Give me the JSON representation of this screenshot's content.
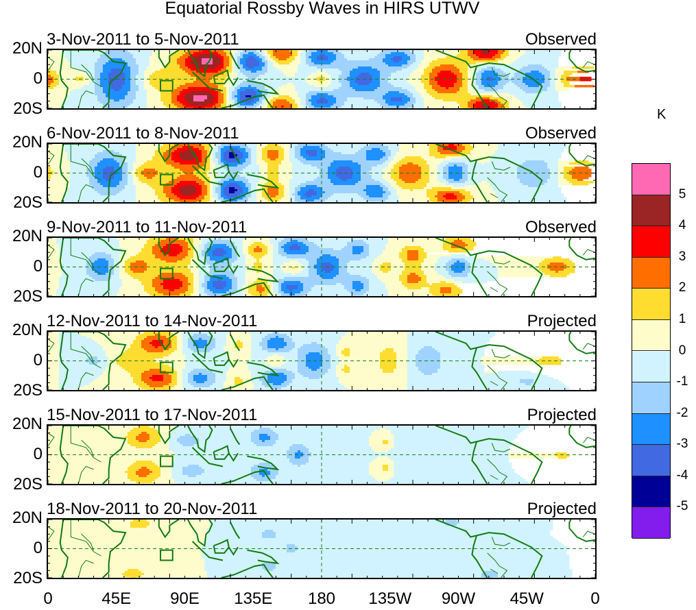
{
  "chart_data": {
    "type": "heatmap",
    "title": "Equatorial Rossby Waves in HIRS UTWV",
    "units": "K",
    "xlabel": "",
    "ylabel": "",
    "x_ticks": [
      "0",
      "45E",
      "90E",
      "135E",
      "180",
      "135W",
      "90W",
      "45W",
      "0"
    ],
    "x_range_deg_east": [
      0,
      360
    ],
    "y_ticks": [
      "20N",
      "0",
      "20S"
    ],
    "y_range_deg": [
      -20,
      20
    ],
    "colorbar": {
      "levels": [
        -5,
        -4,
        -3,
        -2,
        -1,
        0,
        1,
        2,
        3,
        4,
        5
      ],
      "labels": [
        "5",
        "4",
        "3",
        "2",
        "1",
        "0",
        "-1",
        "-2",
        "-3",
        "-4",
        "-5"
      ],
      "colors": [
        "#ff69b4",
        "#9b2424",
        "#ff0000",
        "#ff6f00",
        "#ffdd30",
        "#fffccc",
        "#d1f3ff",
        "#a0d2ff",
        "#1e90ff",
        "#4169e1",
        "#000096",
        "#821ded"
      ]
    },
    "panels": [
      {
        "period": "3-Nov-2011 to 5-Nov-2011",
        "status": "Observed",
        "features": [
          {
            "lon": 105,
            "lat": 12,
            "amp": 5.3,
            "sx": 14,
            "sy": 7
          },
          {
            "lon": 100,
            "lat": -13,
            "amp": 5.3,
            "sx": 14,
            "sy": 7
          },
          {
            "lon": 72,
            "lat": 0,
            "amp": 1.6,
            "sx": 8,
            "sy": 5
          },
          {
            "lon": 45,
            "lat": 0,
            "amp": -3.5,
            "sx": 10,
            "sy": 14
          },
          {
            "lon": 133,
            "lat": 12,
            "amp": -4.6,
            "sx": 9,
            "sy": 6
          },
          {
            "lon": 131,
            "lat": -12,
            "amp": -4.6,
            "sx": 9,
            "sy": 6
          },
          {
            "lon": 153,
            "lat": 17,
            "amp": 3.2,
            "sx": 9,
            "sy": 5
          },
          {
            "lon": 153,
            "lat": -18,
            "amp": 3.2,
            "sx": 9,
            "sy": 5
          },
          {
            "lon": 180,
            "lat": 15,
            "amp": -3.3,
            "sx": 9,
            "sy": 5
          },
          {
            "lon": 180,
            "lat": -15,
            "amp": -3.3,
            "sx": 9,
            "sy": 5
          },
          {
            "lon": 180,
            "lat": 0,
            "amp": 1.4,
            "sx": 4,
            "sy": 4
          },
          {
            "lon": 208,
            "lat": 0,
            "amp": -3.5,
            "sx": 10,
            "sy": 8
          },
          {
            "lon": 230,
            "lat": 14,
            "amp": -3.2,
            "sx": 8,
            "sy": 5
          },
          {
            "lon": 230,
            "lat": -14,
            "amp": -3.2,
            "sx": 8,
            "sy": 5
          },
          {
            "lon": 262,
            "lat": 0,
            "amp": 3.8,
            "sx": 10,
            "sy": 9
          },
          {
            "lon": 288,
            "lat": 18,
            "amp": 4.3,
            "sx": 9,
            "sy": 5
          },
          {
            "lon": 288,
            "lat": -18,
            "amp": 4.3,
            "sx": 9,
            "sy": 5
          },
          {
            "lon": 290,
            "lat": 0,
            "amp": -3.2,
            "sx": 7,
            "sy": 7
          },
          {
            "lon": 320,
            "lat": 0,
            "amp": -2.8,
            "sx": 9,
            "sy": 7
          },
          {
            "lon": 348,
            "lat": 0,
            "amp": 2.7,
            "sx": 9,
            "sy": 6
          },
          {
            "lon": 0,
            "lat": 0,
            "amp": 1.6,
            "sx": 6,
            "sy": 5
          },
          {
            "lon": 22,
            "lat": 0,
            "amp": 1.4,
            "sx": 6,
            "sy": 3
          }
        ]
      },
      {
        "period": "6-Nov-2011 to 8-Nov-2011",
        "status": "Observed",
        "features": [
          {
            "lon": 93,
            "lat": 12,
            "amp": 4.5,
            "sx": 13,
            "sy": 7
          },
          {
            "lon": 93,
            "lat": -12,
            "amp": 4.5,
            "sx": 13,
            "sy": 7
          },
          {
            "lon": 65,
            "lat": 0,
            "amp": 2.3,
            "sx": 7,
            "sy": 5
          },
          {
            "lon": 40,
            "lat": 0,
            "amp": -3.4,
            "sx": 9,
            "sy": 10
          },
          {
            "lon": 120,
            "lat": 12,
            "amp": -4.7,
            "sx": 9,
            "sy": 6
          },
          {
            "lon": 120,
            "lat": -12,
            "amp": -4.7,
            "sx": 9,
            "sy": 6
          },
          {
            "lon": 148,
            "lat": 13,
            "amp": 2.6,
            "sx": 7,
            "sy": 5
          },
          {
            "lon": 148,
            "lat": -13,
            "amp": 2.6,
            "sx": 7,
            "sy": 5
          },
          {
            "lon": 148,
            "lat": 0,
            "amp": 1.3,
            "sx": 4,
            "sy": 4
          },
          {
            "lon": 173,
            "lat": 14,
            "amp": -3.3,
            "sx": 8,
            "sy": 5
          },
          {
            "lon": 172,
            "lat": -14,
            "amp": -3.3,
            "sx": 8,
            "sy": 5
          },
          {
            "lon": 195,
            "lat": 0,
            "amp": -3.6,
            "sx": 10,
            "sy": 8
          },
          {
            "lon": 216,
            "lat": 13,
            "amp": -2.8,
            "sx": 7,
            "sy": 5
          },
          {
            "lon": 216,
            "lat": -13,
            "amp": -2.8,
            "sx": 7,
            "sy": 5
          },
          {
            "lon": 238,
            "lat": 0,
            "amp": 2.9,
            "sx": 9,
            "sy": 8
          },
          {
            "lon": 265,
            "lat": 17,
            "amp": 3.5,
            "sx": 9,
            "sy": 5
          },
          {
            "lon": 265,
            "lat": -16,
            "amp": 3.5,
            "sx": 9,
            "sy": 5
          },
          {
            "lon": 268,
            "lat": 0,
            "amp": -3.0,
            "sx": 6,
            "sy": 7
          },
          {
            "lon": 320,
            "lat": 0,
            "amp": -2.0,
            "sx": 10,
            "sy": 8
          },
          {
            "lon": 350,
            "lat": 0,
            "amp": 2.8,
            "sx": 9,
            "sy": 6
          }
        ]
      },
      {
        "period": "9-Nov-2011 to 11-Nov-2011",
        "status": "Observed",
        "features": [
          {
            "lon": 82,
            "lat": 12,
            "amp": 3.6,
            "sx": 12,
            "sy": 7
          },
          {
            "lon": 82,
            "lat": -12,
            "amp": 3.6,
            "sx": 12,
            "sy": 7
          },
          {
            "lon": 58,
            "lat": 0,
            "amp": 2.4,
            "sx": 7,
            "sy": 5
          },
          {
            "lon": 35,
            "lat": 0,
            "amp": -2.8,
            "sx": 7,
            "sy": 7
          },
          {
            "lon": 112,
            "lat": 10,
            "amp": -3.6,
            "sx": 9,
            "sy": 6
          },
          {
            "lon": 112,
            "lat": -12,
            "amp": -3.6,
            "sx": 9,
            "sy": 6
          },
          {
            "lon": 138,
            "lat": 12,
            "amp": 2.3,
            "sx": 6,
            "sy": 4
          },
          {
            "lon": 140,
            "lat": -15,
            "amp": 2.4,
            "sx": 7,
            "sy": 5
          },
          {
            "lon": 138,
            "lat": 0,
            "amp": 1.3,
            "sx": 4,
            "sy": 4
          },
          {
            "lon": 162,
            "lat": 13,
            "amp": -3.3,
            "sx": 8,
            "sy": 5
          },
          {
            "lon": 160,
            "lat": -14,
            "amp": -3.3,
            "sx": 8,
            "sy": 5
          },
          {
            "lon": 162,
            "lat": 0,
            "amp": 1.3,
            "sx": 4,
            "sy": 4
          },
          {
            "lon": 184,
            "lat": 0,
            "amp": -3.3,
            "sx": 8,
            "sy": 8
          },
          {
            "lon": 204,
            "lat": 12,
            "amp": -2.4,
            "sx": 6,
            "sy": 5
          },
          {
            "lon": 204,
            "lat": -13,
            "amp": -2.4,
            "sx": 6,
            "sy": 5
          },
          {
            "lon": 222,
            "lat": 0,
            "amp": 1.5,
            "sx": 4,
            "sy": 4
          },
          {
            "lon": 240,
            "lat": 8,
            "amp": 2.6,
            "sx": 6,
            "sy": 5
          },
          {
            "lon": 240,
            "lat": -8,
            "amp": 2.6,
            "sx": 6,
            "sy": 5
          },
          {
            "lon": 270,
            "lat": 15,
            "amp": 2.6,
            "sx": 8,
            "sy": 5
          },
          {
            "lon": 262,
            "lat": -16,
            "amp": 2.3,
            "sx": 8,
            "sy": 5
          },
          {
            "lon": 270,
            "lat": 0,
            "amp": -2.7,
            "sx": 6,
            "sy": 6
          },
          {
            "lon": 335,
            "lat": 0,
            "amp": 2.5,
            "sx": 9,
            "sy": 5
          }
        ]
      },
      {
        "period": "12-Nov-2011 to 14-Nov-2011",
        "status": "Projected",
        "features": [
          {
            "lon": 72,
            "lat": 12,
            "amp": 3.3,
            "sx": 10,
            "sy": 6
          },
          {
            "lon": 72,
            "lat": -12,
            "amp": 3.3,
            "sx": 10,
            "sy": 6
          },
          {
            "lon": 52,
            "lat": 0,
            "amp": 1.4,
            "sx": 8,
            "sy": 6
          },
          {
            "lon": 30,
            "lat": 0,
            "amp": -1.3,
            "sx": 6,
            "sy": 4
          },
          {
            "lon": 100,
            "lat": 12,
            "amp": -2.5,
            "sx": 8,
            "sy": 5
          },
          {
            "lon": 100,
            "lat": -12,
            "amp": -2.5,
            "sx": 8,
            "sy": 5
          },
          {
            "lon": 125,
            "lat": 11,
            "amp": 1.3,
            "sx": 5,
            "sy": 4
          },
          {
            "lon": 125,
            "lat": -14,
            "amp": 1.3,
            "sx": 5,
            "sy": 4
          },
          {
            "lon": 150,
            "lat": 12,
            "amp": -3.0,
            "sx": 7,
            "sy": 5
          },
          {
            "lon": 150,
            "lat": -12,
            "amp": -3.0,
            "sx": 7,
            "sy": 5
          },
          {
            "lon": 150,
            "lat": 0,
            "amp": 1.3,
            "sx": 4,
            "sy": 4
          },
          {
            "lon": 175,
            "lat": 0,
            "amp": -2.6,
            "sx": 8,
            "sy": 9
          },
          {
            "lon": 196,
            "lat": 6,
            "amp": 1.3,
            "sx": 4,
            "sy": 4
          },
          {
            "lon": 196,
            "lat": -6,
            "amp": 1.3,
            "sx": 4,
            "sy": 4
          },
          {
            "lon": 224,
            "lat": 0,
            "amp": 1.5,
            "sx": 7,
            "sy": 10
          },
          {
            "lon": 250,
            "lat": 0,
            "amp": -1.8,
            "sx": 8,
            "sy": 9
          },
          {
            "lon": 330,
            "lat": 0,
            "amp": 1.4,
            "sx": 10,
            "sy": 4
          },
          {
            "lon": 315,
            "lat": -14,
            "amp": -1.3,
            "sx": 6,
            "sy": 3
          }
        ]
      },
      {
        "period": "15-Nov-2011 to 17-Nov-2011",
        "status": "Projected",
        "features": [
          {
            "lon": 63,
            "lat": 12,
            "amp": 2.3,
            "sx": 9,
            "sy": 6
          },
          {
            "lon": 63,
            "lat": -12,
            "amp": 2.3,
            "sx": 9,
            "sy": 6
          },
          {
            "lon": 92,
            "lat": 10,
            "amp": -1.6,
            "sx": 8,
            "sy": 4
          },
          {
            "lon": 95,
            "lat": -11,
            "amp": -1.6,
            "sx": 8,
            "sy": 4
          },
          {
            "lon": 142,
            "lat": 12,
            "amp": -2.3,
            "sx": 7,
            "sy": 5
          },
          {
            "lon": 142,
            "lat": -12,
            "amp": -2.3,
            "sx": 7,
            "sy": 5
          },
          {
            "lon": 165,
            "lat": 0,
            "amp": -2.2,
            "sx": 6,
            "sy": 6
          },
          {
            "lon": 222,
            "lat": 9,
            "amp": 1.3,
            "sx": 3,
            "sy": 3
          },
          {
            "lon": 222,
            "lat": -9,
            "amp": 1.3,
            "sx": 3,
            "sy": 3
          },
          {
            "lon": 245,
            "lat": 0,
            "amp": -0.8,
            "sx": 10,
            "sy": 12
          },
          {
            "lon": 338,
            "lat": 0,
            "amp": 1.3,
            "sx": 6,
            "sy": 3
          }
        ]
      },
      {
        "period": "18-Nov-2011 to 20-Nov-2011",
        "status": "Projected",
        "features": [
          {
            "lon": 60,
            "lat": 17,
            "amp": 1.4,
            "sx": 8,
            "sy": 4
          },
          {
            "lon": 56,
            "lat": -17,
            "amp": 1.4,
            "sx": 8,
            "sy": 4
          },
          {
            "lon": 145,
            "lat": 10,
            "amp": -1.3,
            "sx": 7,
            "sy": 4
          },
          {
            "lon": 145,
            "lat": -12,
            "amp": -1.3,
            "sx": 7,
            "sy": 4
          },
          {
            "lon": 160,
            "lat": 0,
            "amp": -1.2,
            "sx": 6,
            "sy": 5
          },
          {
            "lon": 290,
            "lat": -18,
            "amp": -1.5,
            "sx": 6,
            "sy": 3
          },
          {
            "lon": 265,
            "lat": 18,
            "amp": -1.4,
            "sx": 6,
            "sy": 3
          }
        ]
      }
    ]
  }
}
